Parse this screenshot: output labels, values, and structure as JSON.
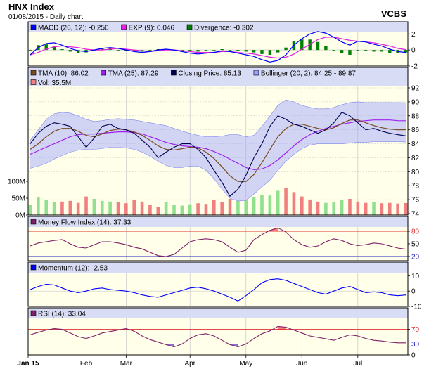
{
  "header": {
    "title": "HNX Index",
    "subtitle": "01/08/2015 - Daily chart",
    "brand": "VCBS"
  },
  "chart_data": [
    {
      "type": "line",
      "panel": "macd",
      "legend": [
        {
          "label": "MACD (26, 12): -0.256",
          "color": "#0000ff"
        },
        {
          "label": "EXP (9): 0.046",
          "color": "#e020e0"
        },
        {
          "label": "Divergence: -0.302",
          "color": "#008000"
        }
      ],
      "ylim": [
        -2,
        2.2
      ],
      "yticks": [
        2,
        0,
        -2
      ],
      "series": [
        {
          "name": "MACD (26, 12)",
          "color": "#0000ff",
          "values": [
            -0.6,
            0.3,
            0.8,
            0.9,
            0.6,
            0.2,
            -0.1,
            -0.2,
            0.0,
            0.2,
            0.3,
            0.2,
            0.0,
            -0.2,
            -0.3,
            -0.2,
            0.0,
            0.1,
            0.0,
            -0.2,
            -0.4,
            -0.5,
            -0.4,
            -0.3,
            -0.1,
            -0.2,
            -0.4,
            -0.6,
            -0.8,
            -1.2,
            -1.5,
            -1.3,
            -0.6,
            0.6,
            1.4,
            2.0,
            2.3,
            2.1,
            1.6,
            1.0,
            0.6,
            1.1,
            1.0,
            0.7,
            0.5,
            0.1,
            -0.2,
            -0.3
          ]
        },
        {
          "name": "EXP (9)",
          "color": "#e020e0",
          "values": [
            -0.6,
            -0.3,
            0.1,
            0.4,
            0.5,
            0.4,
            0.3,
            0.1,
            0.0,
            0.0,
            0.1,
            0.2,
            0.1,
            0.0,
            -0.1,
            -0.2,
            -0.1,
            0.0,
            0.0,
            -0.1,
            -0.2,
            -0.3,
            -0.3,
            -0.3,
            -0.2,
            -0.2,
            -0.3,
            -0.4,
            -0.5,
            -0.7,
            -0.9,
            -1.0,
            -0.9,
            -0.5,
            0.1,
            0.7,
            1.3,
            1.6,
            1.6,
            1.4,
            1.2,
            1.1,
            1.0,
            0.9,
            0.7,
            0.5,
            0.2,
            0.05
          ]
        },
        {
          "name": "Divergence",
          "color": "#008000",
          "style": "histogram",
          "values": [
            0.0,
            0.6,
            0.7,
            0.5,
            0.1,
            -0.2,
            -0.4,
            -0.3,
            0.0,
            0.2,
            0.2,
            0.0,
            -0.1,
            -0.2,
            -0.2,
            0.0,
            0.1,
            0.1,
            0.0,
            -0.1,
            -0.2,
            -0.2,
            -0.1,
            0.0,
            0.1,
            0.0,
            -0.1,
            -0.2,
            -0.3,
            -0.5,
            -0.6,
            -0.3,
            0.3,
            1.1,
            1.3,
            1.3,
            1.0,
            0.5,
            0.0,
            -0.4,
            -0.6,
            0.0,
            0.0,
            -0.2,
            -0.2,
            -0.4,
            -0.4,
            -0.3
          ]
        }
      ]
    },
    {
      "type": "line",
      "panel": "price",
      "legend": [
        {
          "label": "TMA (10): 86.02",
          "color": "#7a4a20"
        },
        {
          "label": "TMA (25): 87.29",
          "color": "#a020f0"
        },
        {
          "label": "Closing Price: 85.13",
          "color": "#000050"
        },
        {
          "label": "Bollinger (20, 2): 84.25 - 89.87",
          "color": "#9aa0ff"
        }
      ],
      "ylim": [
        74,
        92
      ],
      "yticks": [
        92,
        90,
        88,
        86,
        84,
        82,
        80,
        78,
        76,
        74
      ],
      "series": [
        {
          "name": "Closing Price",
          "color": "#000050",
          "values": [
            84.0,
            85.5,
            86.5,
            87.0,
            86.8,
            86.5,
            85.0,
            83.5,
            84.8,
            86.5,
            86.8,
            86.2,
            86.0,
            85.5,
            84.5,
            83.5,
            82.0,
            82.8,
            83.5,
            84.0,
            84.0,
            83.2,
            82.0,
            80.2,
            78.5,
            76.5,
            77.5,
            79.5,
            82.0,
            84.0,
            86.5,
            88.0,
            87.5,
            86.8,
            86.5,
            86.0,
            85.5,
            86.0,
            87.0,
            88.5,
            88.0,
            87.0,
            86.0,
            86.2,
            85.8,
            85.5,
            85.3,
            85.13
          ]
        },
        {
          "name": "TMA (10)",
          "color": "#7a4a20",
          "values": [
            83.2,
            84.0,
            85.0,
            85.8,
            86.2,
            86.2,
            85.8,
            85.2,
            85.0,
            85.4,
            85.9,
            86.1,
            86.0,
            85.7,
            85.2,
            84.5,
            83.7,
            83.2,
            83.1,
            83.3,
            83.5,
            83.4,
            82.8,
            81.9,
            80.7,
            79.4,
            78.6,
            78.6,
            79.6,
            81.3,
            83.2,
            85.0,
            86.2,
            86.8,
            86.8,
            86.5,
            86.2,
            86.0,
            86.3,
            86.9,
            87.4,
            87.4,
            87.0,
            86.6,
            86.3,
            86.1,
            86.0,
            86.02
          ]
        },
        {
          "name": "TMA (25)",
          "color": "#a020f0",
          "values": [
            82.5,
            83.0,
            83.5,
            84.0,
            84.5,
            85.0,
            85.3,
            85.4,
            85.4,
            85.5,
            85.6,
            85.7,
            85.7,
            85.6,
            85.4,
            85.0,
            84.6,
            84.2,
            83.9,
            83.7,
            83.6,
            83.5,
            83.3,
            82.9,
            82.4,
            81.8,
            81.2,
            80.6,
            80.3,
            80.4,
            80.9,
            81.7,
            82.7,
            83.7,
            84.6,
            85.3,
            85.8,
            86.2,
            86.5,
            86.8,
            87.0,
            87.2,
            87.3,
            87.4,
            87.4,
            87.4,
            87.3,
            87.29
          ]
        },
        {
          "name": "Bollinger (20, 2) upper",
          "color": "#9aa0ff",
          "values": [
            84.5,
            86.0,
            87.5,
            88.3,
            88.5,
            88.4,
            88.0,
            87.5,
            87.2,
            87.3,
            87.5,
            87.6,
            87.5,
            87.4,
            87.2,
            87.0,
            86.8,
            86.6,
            86.2,
            85.8,
            85.5,
            85.2,
            85.0,
            85.0,
            85.1,
            85.3,
            85.3,
            85.0,
            85.2,
            86.5,
            88.0,
            89.5,
            90.3,
            90.0,
            89.5,
            89.2,
            89.0,
            89.0,
            89.2,
            89.6,
            89.9,
            90.0,
            89.9,
            89.9,
            89.9,
            89.9,
            89.9,
            89.87
          ]
        },
        {
          "name": "Bollinger (20, 2) lower",
          "color": "#9aa0ff",
          "values": [
            80.5,
            80.8,
            81.2,
            81.8,
            82.3,
            82.8,
            83.1,
            83.2,
            83.2,
            83.3,
            83.5,
            83.5,
            83.4,
            83.2,
            82.8,
            82.2,
            81.5,
            80.9,
            80.6,
            80.6,
            80.8,
            80.8,
            80.2,
            79.0,
            77.5,
            76.2,
            75.8,
            75.9,
            76.8,
            77.8,
            78.8,
            80.2,
            81.5,
            82.5,
            83.3,
            83.8,
            84.0,
            84.0,
            84.0,
            84.0,
            84.1,
            84.2,
            84.2,
            84.3,
            84.3,
            84.3,
            84.3,
            84.25
          ]
        }
      ]
    },
    {
      "type": "bar",
      "panel": "volume",
      "legend": [
        {
          "label": "Vol: 35.5M",
          "color": "#f08080"
        }
      ],
      "ylim": [
        0,
        100
      ],
      "yticks": [
        {
          "value": 0,
          "label": "0M"
        },
        {
          "value": 50,
          "label": "50M"
        },
        {
          "value": 100,
          "label": "100M"
        }
      ],
      "up_color": "#90e090",
      "down_color": "#f08080",
      "values": [
        30,
        52,
        45,
        38,
        40,
        42,
        36,
        55,
        48,
        42,
        40,
        38,
        35,
        44,
        40,
        30,
        25,
        38,
        30,
        28,
        32,
        35,
        33,
        45,
        38,
        48,
        42,
        44,
        52,
        60,
        58,
        72,
        80,
        68,
        55,
        46,
        40,
        36,
        38,
        45,
        48,
        40,
        36,
        38,
        35,
        36,
        34,
        35.5
      ]
    },
    {
      "type": "line",
      "panel": "mfi",
      "legend": [
        {
          "label": "Money Flow Index (14): 37.33",
          "color": "#80206a"
        }
      ],
      "ylim": [
        10,
        90
      ],
      "yticks": [
        80,
        50,
        20
      ],
      "reference_lines": [
        80,
        20
      ],
      "series": [
        {
          "name": "Money Flow Index (14)",
          "color": "#80206a",
          "values": [
            45,
            52,
            55,
            58,
            60,
            50,
            42,
            40,
            48,
            55,
            55,
            52,
            48,
            42,
            38,
            30,
            22,
            20,
            25,
            40,
            55,
            60,
            62,
            60,
            55,
            42,
            30,
            35,
            60,
            72,
            82,
            88,
            78,
            60,
            48,
            42,
            45,
            55,
            62,
            58,
            50,
            46,
            48,
            52,
            50,
            45,
            40,
            37.33
          ]
        }
      ]
    },
    {
      "type": "line",
      "panel": "momentum",
      "legend": [
        {
          "label": "Momentum (12): -2.53",
          "color": "#0000ff"
        }
      ],
      "ylim": [
        -10,
        12
      ],
      "yticks": [
        10,
        0,
        -10
      ],
      "series": [
        {
          "name": "Momentum (12)",
          "color": "#0000ff",
          "values": [
            1.0,
            3.0,
            4.5,
            4.0,
            2.0,
            0.0,
            -1.0,
            0.0,
            1.5,
            2.0,
            1.0,
            0.5,
            0.0,
            -1.0,
            -2.5,
            -3.5,
            -4.0,
            -2.5,
            -1.0,
            0.5,
            2.0,
            2.5,
            1.5,
            0.0,
            -2.0,
            -4.0,
            -6.5,
            -3.0,
            1.0,
            5.5,
            7.5,
            8.0,
            7.0,
            5.0,
            3.0,
            1.0,
            -1.0,
            -2.0,
            0.0,
            2.0,
            3.0,
            1.0,
            -1.0,
            -0.5,
            -1.0,
            -2.5,
            -3.0,
            -2.53
          ]
        }
      ]
    },
    {
      "type": "line",
      "panel": "rsi",
      "legend": [
        {
          "label": "RSI (14): 33.04",
          "color": "#80206a"
        }
      ],
      "ylim": [
        0,
        100
      ],
      "yticks": [
        70,
        30,
        0
      ],
      "reference_lines": [
        70,
        30
      ],
      "series": [
        {
          "name": "RSI (14)",
          "color": "#80206a",
          "values": [
            55,
            62,
            68,
            72,
            70,
            60,
            50,
            45,
            52,
            60,
            64,
            68,
            72,
            65,
            52,
            42,
            35,
            28,
            22,
            30,
            45,
            55,
            58,
            52,
            40,
            28,
            22,
            30,
            45,
            58,
            66,
            78,
            76,
            68,
            60,
            52,
            48,
            44,
            40,
            48,
            55,
            52,
            45,
            40,
            38,
            35,
            33,
            33.04
          ]
        }
      ]
    }
  ],
  "x_axis": {
    "months": [
      {
        "label": "Jan 15",
        "index": 0
      },
      {
        "label": "Feb",
        "index": 7
      },
      {
        "label": "Mar",
        "index": 12
      },
      {
        "label": "Apr",
        "index": 20
      },
      {
        "label": "May",
        "index": 27
      },
      {
        "label": "Jun",
        "index": 34
      },
      {
        "label": "Jul",
        "index": 41
      }
    ]
  },
  "colors": {
    "panel_bg": "#ffffea",
    "legend_bg": "#d8dcf4",
    "grid": "#c8c8c8",
    "bollinger_fill": "#9aa0ff",
    "overbought_fill": "#ff6060",
    "oversold_fill": "#6a5acd",
    "reference_line": "#e03030",
    "reference_line_low": "#2020c0"
  }
}
